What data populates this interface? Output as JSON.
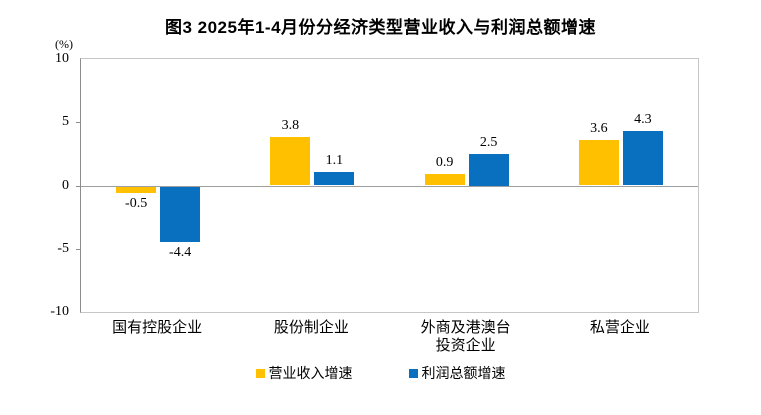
{
  "chart_data": {
    "type": "bar",
    "title": "图3 2025年1-4月份分经济类型营业收入与利润总额增速",
    "unit_label": "(%)",
    "categories": [
      "国有控股企业",
      "股份制企业",
      "外商及港澳台\n投资企业",
      "私营企业"
    ],
    "series": [
      {
        "name": "营业收入增速",
        "color": "#FFC000",
        "values": [
          -0.5,
          3.8,
          0.9,
          3.6
        ],
        "labels": [
          "-0.5",
          "3.8",
          "0.9",
          "3.6"
        ]
      },
      {
        "name": "利润总额增速",
        "color": "#0970C0",
        "values": [
          -4.4,
          1.1,
          2.5,
          4.3
        ],
        "labels": [
          "-4.4",
          "1.1",
          "2.5",
          "4.3"
        ]
      }
    ],
    "ylim": [
      -10,
      10
    ],
    "yticks": [
      10,
      5,
      0,
      -5,
      -10
    ],
    "grid": "zero-line-only",
    "legend_position": "bottom",
    "xlabel": "",
    "ylabel": "(%)"
  }
}
